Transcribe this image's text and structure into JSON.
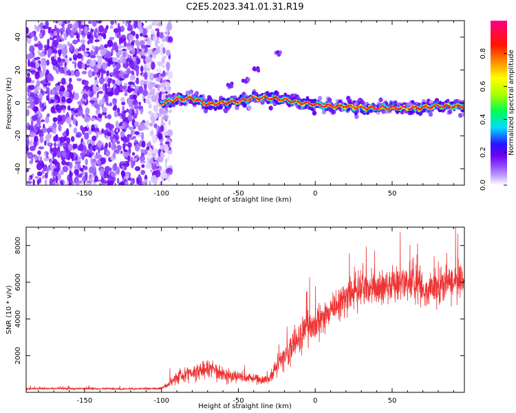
{
  "title": "C2E5.2023.341.01.31.R19",
  "chart_data": [
    {
      "type": "heatmap",
      "xlabel": "Height of straight line (km)",
      "ylabel": "Frequency (Hz)",
      "xlim": [
        -188,
        97
      ],
      "ylim": [
        -50,
        50
      ],
      "x_ticks": [
        -150,
        -100,
        -50,
        0,
        50
      ],
      "y_ticks": [
        -40,
        -20,
        0,
        20,
        40
      ],
      "grid": false,
      "colorbar": {
        "label": "Normalized spectral amplitude",
        "range": [
          0,
          1
        ],
        "ticks": [
          0.0,
          0.2,
          0.4,
          0.6,
          0.8
        ],
        "colors": [
          "#ffffff",
          "#b08cff",
          "#7a00ff",
          "#1a1aff",
          "#00d8ff",
          "#00ff40",
          "#b0ff00",
          "#ffff00",
          "#ff8000",
          "#ff0000",
          "#ff0080"
        ]
      },
      "noise_region_x": [
        -188,
        -100
      ],
      "signal_trace": {
        "x": [
          -100,
          -90,
          -80,
          -70,
          -60,
          -50,
          -40,
          -30,
          -20,
          -10,
          0,
          10,
          20,
          30,
          40,
          50,
          60,
          70,
          80,
          90,
          97
        ],
        "y": [
          0,
          2,
          3,
          -1,
          0,
          1,
          3,
          3,
          2,
          0,
          -1,
          -2,
          -2,
          -3,
          -3,
          -3,
          -3,
          -3,
          -2,
          -2,
          -2
        ]
      }
    },
    {
      "type": "line",
      "xlabel": "Height of straight line (km)",
      "ylabel": "SNR (10 * v/v)",
      "xlim": [
        -188,
        97
      ],
      "ylim": [
        0,
        9000
      ],
      "x_ticks": [
        -150,
        -100,
        -50,
        0,
        50
      ],
      "y_ticks": [
        2000,
        4000,
        6000,
        8000
      ],
      "grid": false,
      "color": "#ee3333",
      "series": [
        {
          "x": [
            -188,
            -170,
            -150,
            -130,
            -110,
            -100,
            -95,
            -90,
            -85,
            -80,
            -75,
            -70,
            -65,
            -60,
            -55,
            -50,
            -45,
            -40,
            -35,
            -30,
            -25,
            -20,
            -15,
            -10,
            -5,
            0,
            5,
            10,
            15,
            20,
            25,
            30,
            35,
            40,
            45,
            50,
            55,
            60,
            65,
            70,
            75,
            80,
            85,
            90,
            97
          ],
          "values": [
            200,
            210,
            200,
            190,
            200,
            220,
            500,
            800,
            1000,
            1100,
            1200,
            1300,
            1250,
            1000,
            900,
            850,
            800,
            750,
            700,
            700,
            1500,
            2000,
            2500,
            3000,
            3500,
            3800,
            4200,
            4300,
            4800,
            5200,
            5500,
            5600,
            5700,
            5600,
            5800,
            5800,
            5900,
            6000,
            6000,
            5700,
            5700,
            5800,
            5900,
            6000,
            6100
          ],
          "spread": [
            80,
            80,
            80,
            80,
            80,
            100,
            300,
            500,
            600,
            600,
            700,
            700,
            700,
            600,
            500,
            450,
            400,
            400,
            350,
            350,
            900,
            1000,
            1100,
            1200,
            1300,
            1300,
            1300,
            1300,
            1400,
            1500,
            1500,
            1400,
            1400,
            1400,
            1400,
            1400,
            1400,
            1500,
            1500,
            1300,
            1300,
            1300,
            1400,
            1400,
            1400
          ]
        }
      ]
    }
  ]
}
